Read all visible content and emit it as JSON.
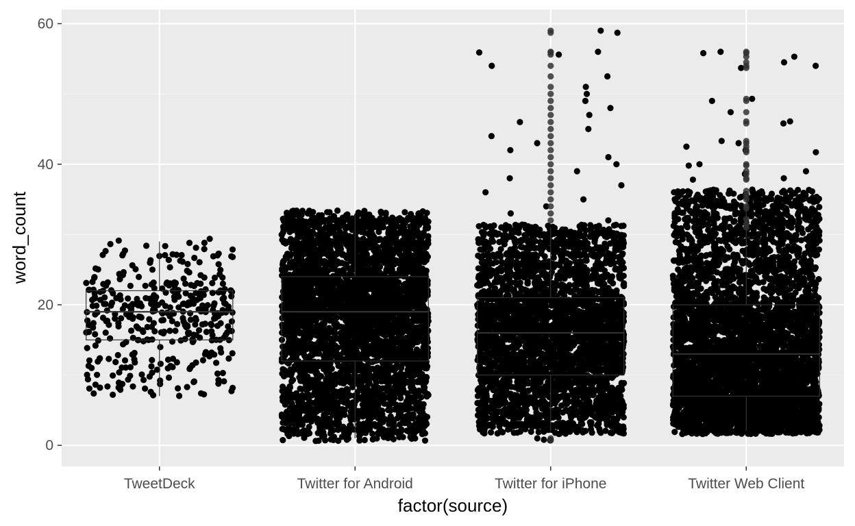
{
  "chart_data": {
    "type": "scatter",
    "subtype": "boxplot with jittered points",
    "xlabel": "factor(source)",
    "ylabel": "word_count",
    "categories": [
      "TweetDeck",
      "Twitter for Android",
      "Twitter for iPhone",
      "Twitter Web Client"
    ],
    "ylim": [
      -3,
      62
    ],
    "yticks": [
      0,
      20,
      40,
      60
    ],
    "grid": true,
    "legend": "none",
    "colors": {
      "panel_background": "#ebebeb",
      "grid_major": "#ffffff",
      "grid_minor": "#f5f5f5",
      "points": "#000000",
      "box_outline": "#333333"
    },
    "boxes": [
      {
        "category": "TweetDeck",
        "lower_whisker": 7,
        "q1": 15,
        "median": 19,
        "q3": 22,
        "upper_whisker": 29,
        "point_count": 400,
        "extreme_points": []
      },
      {
        "category": "Twitter for Android",
        "lower_whisker": 1,
        "q1": 12,
        "median": 19,
        "q3": 24,
        "upper_whisker": 33,
        "point_count": 4000,
        "extreme_points": []
      },
      {
        "category": "Twitter for iPhone",
        "lower_whisker": 2,
        "q1": 10,
        "median": 16,
        "q3": 21,
        "upper_whisker": 31,
        "point_count": 3500,
        "extreme_points": [
          56,
          59,
          58.7,
          55.6,
          55.9,
          54,
          52.5,
          51,
          50,
          49,
          48,
          47,
          46,
          45,
          44,
          43,
          42,
          41,
          40,
          39,
          38,
          37,
          36,
          35,
          34,
          33,
          32,
          1,
          0.8,
          0.7
        ]
      },
      {
        "category": "Twitter Web Client",
        "lower_whisker": 2,
        "q1": 7,
        "median": 13,
        "q3": 20,
        "upper_whisker": 36,
        "point_count": 4500,
        "extreme_points": [
          56,
          55.8,
          55.3,
          54.5,
          54,
          53.7,
          49.3,
          49,
          47.4,
          46.1,
          45.8,
          43.3,
          43,
          42.5,
          42,
          41.7,
          40,
          39.8,
          39,
          38.6,
          38,
          37.8,
          36.2,
          35.6,
          35,
          34,
          33.7,
          32.2,
          31.5,
          31
        ]
      }
    ]
  }
}
